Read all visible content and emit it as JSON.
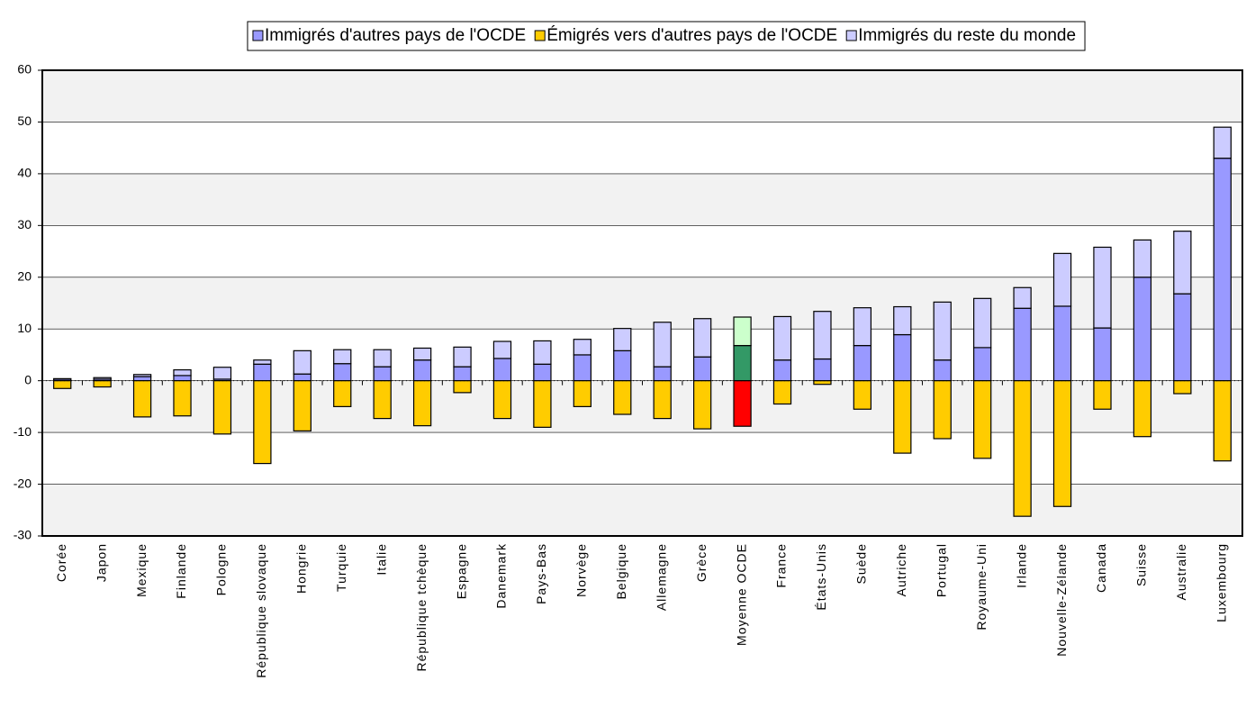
{
  "chart_data": {
    "type": "bar",
    "stacked": true,
    "categories": [
      "Corée",
      "Japon",
      "Mexique",
      "Finlande",
      "Pologne",
      "République slovaque",
      "Hongrie",
      "Turquie",
      "Italie",
      "République tchèque",
      "Espagne",
      "Danemark",
      "Pays-Bas",
      "Norvège",
      "Belgique",
      "Allemagne",
      "Grèce",
      "Moyenne OCDE",
      "France",
      "États-Unis",
      "Suède",
      "Autriche",
      "Portugal",
      "Royaume-Uni",
      "Irlande",
      "Nouvelle-Zélande",
      "Canada",
      "Suisse",
      "Australie",
      "Luxembourg"
    ],
    "series": [
      {
        "name": "Immigrés d'autres pays de l'OCDE",
        "color": "#9999ff",
        "values": [
          0.3,
          0.3,
          0.8,
          1,
          0.3,
          3.2,
          1.3,
          3.3,
          2.7,
          4,
          2.7,
          4.3,
          3.2,
          5,
          5.8,
          2.7,
          4.6,
          6.8,
          4,
          4.2,
          6.8,
          8.9,
          4,
          6.4,
          14,
          14.4,
          10.2,
          20,
          16.8,
          43
        ]
      },
      {
        "name": "Émigrés vers d'autres pays de l'OCDE",
        "color": "#ffcc00",
        "values": [
          -1.5,
          -1.2,
          -7,
          -6.8,
          -10.3,
          -16,
          -9.7,
          -5,
          -7.3,
          -8.7,
          -2.3,
          -7.3,
          -9,
          -5,
          -6.5,
          -7.3,
          -9.3,
          -8.8,
          -4.5,
          -0.7,
          -5.5,
          -14,
          -11.2,
          -15,
          -26.2,
          -24.3,
          -5.5,
          -10.8,
          -2.5,
          -15.5
        ]
      },
      {
        "name": "Immigrés du reste du monde",
        "color": "#ccccff",
        "values": [
          0.1,
          0.3,
          0.4,
          1.1,
          2.3,
          0.8,
          4.5,
          2.7,
          3.3,
          2.3,
          3.8,
          3.3,
          4.5,
          3,
          4.3,
          8.6,
          7.4,
          5.5,
          8.4,
          9.2,
          7.3,
          5.4,
          11.2,
          9.5,
          4,
          10.2,
          15.6,
          7.2,
          12.1,
          6
        ]
      }
    ],
    "highlight_category": "Moyenne OCDE",
    "highlight_colors": [
      "#339966",
      "#ff0000",
      "#ccffcc"
    ],
    "ylim": [
      -30,
      60
    ],
    "yticks": [
      -30,
      -20,
      -10,
      0,
      10,
      20,
      30,
      40,
      50,
      60
    ],
    "grid": true,
    "legend": "top"
  }
}
